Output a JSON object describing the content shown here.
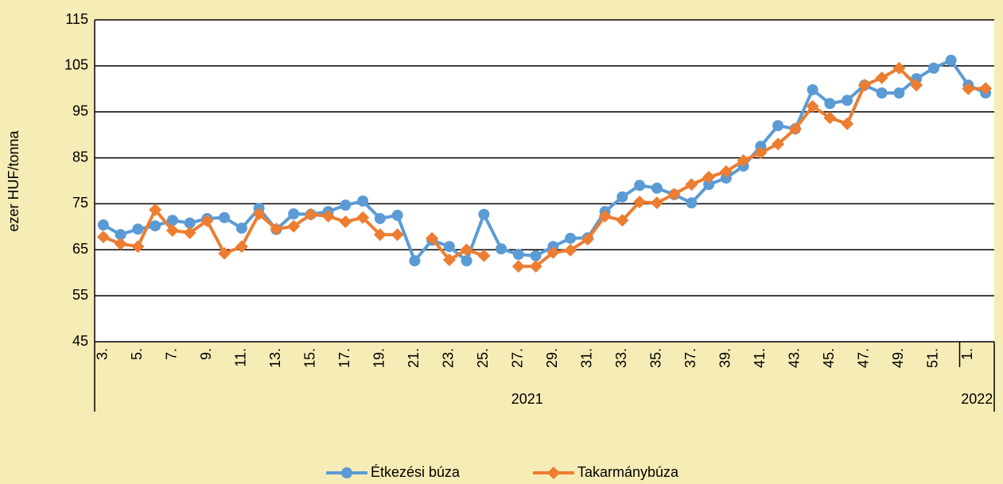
{
  "chart_data": {
    "type": "line",
    "y_label": "ezer HUF/tonna",
    "categories": [
      "3.",
      null,
      "5.",
      null,
      "7.",
      null,
      "9.",
      null,
      "11.",
      null,
      "13.",
      null,
      "15.",
      null,
      "17.",
      null,
      "19.",
      null,
      "21.",
      null,
      "23.",
      null,
      "25.",
      null,
      "27.",
      null,
      "29.",
      null,
      "31.",
      null,
      "33.",
      null,
      "35.",
      null,
      "37.",
      null,
      "39.",
      null,
      "41.",
      null,
      "43.",
      null,
      "45.",
      null,
      "47.",
      null,
      "49.",
      null,
      "51.",
      null,
      "1.",
      null
    ],
    "groups": [
      {
        "name": "2021",
        "count": 50
      },
      {
        "name": "2022",
        "count": 2
      }
    ],
    "series": [
      {
        "name": "Étkezési búza",
        "color": "#5b9bd5",
        "marker": "circle",
        "values": [
          70.4,
          68.3,
          69.5,
          70.2,
          71.4,
          70.8,
          71.8,
          72.0,
          69.7,
          74.0,
          69.4,
          72.8,
          72.7,
          73.3,
          74.7,
          75.6,
          71.8,
          72.5,
          62.6,
          67.1,
          65.7,
          62.6,
          72.7,
          65.2,
          64.0,
          63.7,
          65.7,
          67.5,
          67.6,
          73.3,
          76.5,
          79.0,
          78.4,
          77.0,
          75.2,
          79.2,
          80.6,
          83.2,
          87.5,
          92.0,
          91.3,
          99.8,
          96.8,
          97.5,
          100.8,
          99.1,
          99.1,
          102.2,
          104.5,
          106.2,
          100.8,
          99.1
        ]
      },
      {
        "name": "Takarmánybúza",
        "color": "#ed7d31",
        "marker": "diamond",
        "values": [
          67.8,
          66.3,
          65.7,
          73.7,
          69.2,
          68.7,
          71.3,
          64.2,
          65.7,
          72.8,
          69.5,
          70.1,
          72.7,
          72.3,
          71.1,
          72.0,
          68.3,
          68.3,
          null,
          67.5,
          62.8,
          65.0,
          63.7,
          null,
          61.4,
          61.4,
          64.4,
          64.9,
          67.3,
          72.3,
          71.4,
          75.4,
          75.2,
          77.1,
          79.2,
          80.8,
          82.0,
          84.4,
          86.1,
          88.0,
          91.3,
          96.2,
          93.7,
          92.4,
          100.8,
          102.4,
          104.5,
          100.8,
          null,
          null,
          100.0,
          100.1
        ]
      }
    ],
    "ylim": [
      45,
      115
    ],
    "yticks": [
      45,
      55,
      65,
      75,
      85,
      95,
      105,
      115
    ],
    "grid": true,
    "legend": "bottom"
  }
}
